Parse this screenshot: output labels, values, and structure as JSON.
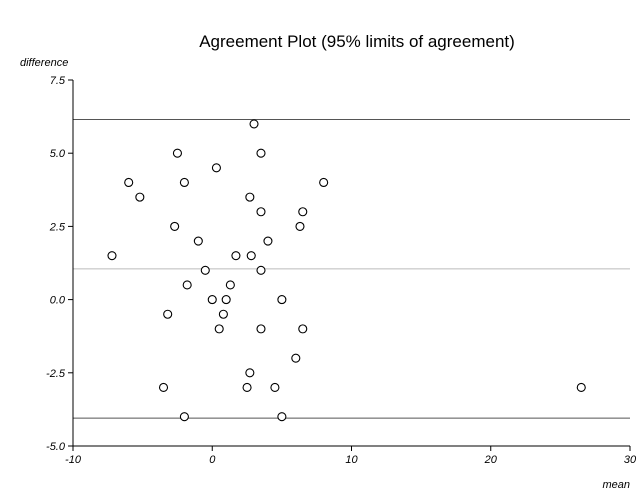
{
  "chart_data": {
    "type": "scatter",
    "title": "Agreement Plot (95% limits of agreement)",
    "xlabel": "mean",
    "ylabel": "difference",
    "xlim": [
      -10,
      30
    ],
    "ylim": [
      -5.0,
      7.5
    ],
    "x_ticks": [
      -10,
      0,
      10,
      20,
      30
    ],
    "x_tick_labels": [
      "-10",
      "0",
      "10",
      "20",
      "30"
    ],
    "y_ticks": [
      -5.0,
      -2.5,
      0.0,
      2.5,
      5.0,
      7.5
    ],
    "y_tick_labels": [
      "-5.0",
      "-2.5",
      "0.0",
      "2.5",
      "5.0",
      "7.5"
    ],
    "grid": false,
    "mean_difference": 1.05,
    "upper_limit": 6.15,
    "lower_limit": -4.05,
    "series": [
      {
        "points": [
          [
            -7.2,
            1.5
          ],
          [
            -6.0,
            4.0
          ],
          [
            -5.2,
            3.5
          ],
          [
            -3.2,
            -0.5
          ],
          [
            -3.5,
            -3.0
          ],
          [
            -2.7,
            2.5
          ],
          [
            -2.5,
            5.0
          ],
          [
            -2.0,
            4.0
          ],
          [
            -1.8,
            0.5
          ],
          [
            -2.0,
            -4.0
          ],
          [
            -1.0,
            2.0
          ],
          [
            -0.5,
            1.0
          ],
          [
            0.0,
            0.0
          ],
          [
            0.3,
            4.5
          ],
          [
            0.5,
            -1.0
          ],
          [
            0.8,
            -0.5
          ],
          [
            1.0,
            0.0
          ],
          [
            1.3,
            0.5
          ],
          [
            1.7,
            1.5
          ],
          [
            2.5,
            -3.0
          ],
          [
            2.7,
            3.5
          ],
          [
            2.7,
            -2.5
          ],
          [
            2.8,
            1.5
          ],
          [
            3.0,
            6.0
          ],
          [
            3.5,
            5.0
          ],
          [
            3.5,
            3.0
          ],
          [
            3.5,
            1.0
          ],
          [
            3.5,
            -1.0
          ],
          [
            4.0,
            2.0
          ],
          [
            4.5,
            -3.0
          ],
          [
            5.0,
            0.0
          ],
          [
            5.0,
            -4.0
          ],
          [
            6.0,
            -2.0
          ],
          [
            6.3,
            2.5
          ],
          [
            6.5,
            3.0
          ],
          [
            6.5,
            -1.0
          ],
          [
            8.0,
            4.0
          ],
          [
            26.5,
            -3.0
          ]
        ]
      }
    ]
  }
}
